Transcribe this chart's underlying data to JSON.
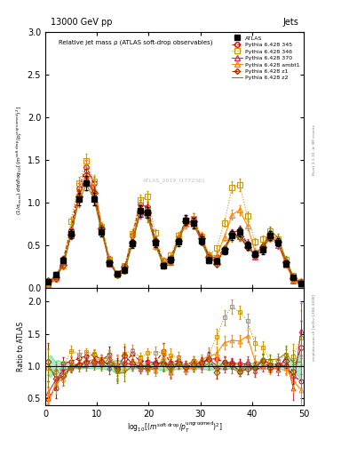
{
  "title_left": "13000 GeV pp",
  "title_right": "Jets",
  "plot_title": "Relative jet mass ρ (ATLAS soft-drop observables)",
  "ylabel_ratio": "Ratio to ATLAS",
  "xlim": [
    0,
    50
  ],
  "ylim_main": [
    0,
    3.0
  ],
  "ylim_ratio": [
    0.4,
    2.2
  ],
  "watermark": "ATLAS_2019_I1772361",
  "colors": {
    "ATLAS": "#000000",
    "345": "#cc0000",
    "346": "#cc9900",
    "370": "#cc3366",
    "ambt1": "#ff8800",
    "z1": "#aa2200",
    "z2": "#888800"
  },
  "atlas_band_color": "#00cc66",
  "atlas_band_alpha": 0.35
}
